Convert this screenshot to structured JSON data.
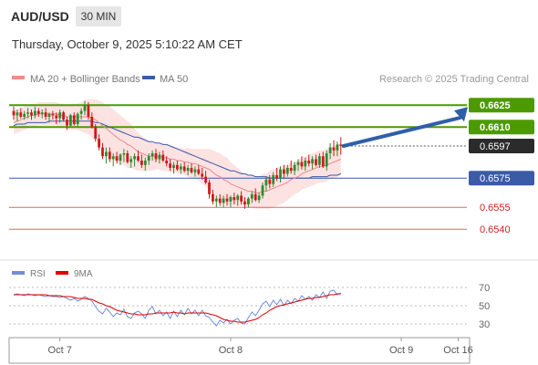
{
  "header": {
    "symbol": "AUD/USD",
    "timeframe": "30 MIN",
    "datetime": "Thursday, October 9, 2025 5:10:22 AM CET"
  },
  "legend": {
    "bb_label": "MA 20 + Bollinger Bands",
    "ma50_label": "MA 50",
    "credit": "Research © 2025 Trading Central",
    "bb_color": "#f28b82",
    "ma50_color": "#3b5ba9"
  },
  "rsi_legend": {
    "rsi_label": "RSI",
    "ma9_label": "9MA",
    "rsi_color": "#6f8fd8",
    "ma9_color": "#e00000"
  },
  "chart_data": [
    {
      "type": "candlestick",
      "ylim": [
        0.6522,
        0.6647
      ],
      "bullish_color": "#2e8b2e",
      "bearish_color": "#cc1b1b",
      "candles": [
        [
          0.6621,
          0.6624,
          0.6615,
          0.6618
        ],
        [
          0.6618,
          0.6622,
          0.6614,
          0.662
        ],
        [
          0.662,
          0.6623,
          0.6616,
          0.6617
        ],
        [
          0.6617,
          0.6621,
          0.6615,
          0.6619
        ],
        [
          0.6619,
          0.6623,
          0.6616,
          0.662
        ],
        [
          0.662,
          0.6622,
          0.6615,
          0.6618
        ],
        [
          0.6618,
          0.6624,
          0.6616,
          0.6621
        ],
        [
          0.6621,
          0.6623,
          0.6617,
          0.6619
        ],
        [
          0.6619,
          0.6622,
          0.6616,
          0.662
        ],
        [
          0.662,
          0.6623,
          0.6615,
          0.6617
        ],
        [
          0.6617,
          0.662,
          0.6613,
          0.6619
        ],
        [
          0.6619,
          0.6621,
          0.6615,
          0.6618
        ],
        [
          0.6618,
          0.662,
          0.6612,
          0.6616
        ],
        [
          0.6616,
          0.6622,
          0.6613,
          0.662
        ],
        [
          0.662,
          0.6621,
          0.6614,
          0.6615
        ],
        [
          0.6615,
          0.6617,
          0.6608,
          0.6611
        ],
        [
          0.6611,
          0.6619,
          0.661,
          0.6618
        ],
        [
          0.6618,
          0.662,
          0.6611,
          0.6612
        ],
        [
          0.6612,
          0.662,
          0.661,
          0.6619
        ],
        [
          0.6619,
          0.6623,
          0.6615,
          0.6621
        ],
        [
          0.6621,
          0.6628,
          0.6618,
          0.6625
        ],
        [
          0.6625,
          0.6627,
          0.6615,
          0.6617
        ],
        [
          0.6617,
          0.662,
          0.6609,
          0.661
        ],
        [
          0.661,
          0.6612,
          0.66,
          0.6602
        ],
        [
          0.6602,
          0.6605,
          0.6594,
          0.6596
        ],
        [
          0.6596,
          0.6599,
          0.6588,
          0.659
        ],
        [
          0.659,
          0.6596,
          0.6585,
          0.6593
        ],
        [
          0.6593,
          0.6596,
          0.6586,
          0.6588
        ],
        [
          0.6588,
          0.6592,
          0.6583,
          0.659
        ],
        [
          0.659,
          0.6593,
          0.6585,
          0.6587
        ],
        [
          0.6587,
          0.6592,
          0.6584,
          0.6591
        ],
        [
          0.6591,
          0.6595,
          0.6586,
          0.6592
        ],
        [
          0.6592,
          0.6594,
          0.6585,
          0.6586
        ],
        [
          0.6586,
          0.659,
          0.6582,
          0.6588
        ],
        [
          0.6588,
          0.6592,
          0.6583,
          0.659
        ],
        [
          0.659,
          0.6594,
          0.6586,
          0.6587
        ],
        [
          0.6587,
          0.6591,
          0.6582,
          0.6584
        ],
        [
          0.6584,
          0.6589,
          0.658,
          0.6587
        ],
        [
          0.6587,
          0.6592,
          0.6584,
          0.659
        ],
        [
          0.659,
          0.6594,
          0.6587,
          0.6592
        ],
        [
          0.6592,
          0.6595,
          0.6586,
          0.6588
        ],
        [
          0.6588,
          0.6593,
          0.6585,
          0.6591
        ],
        [
          0.6591,
          0.6594,
          0.6586,
          0.6587
        ],
        [
          0.6587,
          0.659,
          0.6583,
          0.6585
        ],
        [
          0.6585,
          0.6588,
          0.658,
          0.6582
        ],
        [
          0.6582,
          0.6586,
          0.6578,
          0.6584
        ],
        [
          0.6584,
          0.6587,
          0.658,
          0.6581
        ],
        [
          0.6581,
          0.6585,
          0.6578,
          0.6583
        ],
        [
          0.6583,
          0.6586,
          0.6579,
          0.658
        ],
        [
          0.658,
          0.6584,
          0.6577,
          0.6582
        ],
        [
          0.6582,
          0.6585,
          0.6578,
          0.6579
        ],
        [
          0.6579,
          0.6583,
          0.6576,
          0.6581
        ],
        [
          0.6581,
          0.6584,
          0.6577,
          0.6578
        ],
        [
          0.6578,
          0.6582,
          0.6574,
          0.6576
        ],
        [
          0.6576,
          0.658,
          0.6571,
          0.6572
        ],
        [
          0.6572,
          0.6574,
          0.6561,
          0.6564
        ],
        [
          0.6564,
          0.6567,
          0.6557,
          0.6559
        ],
        [
          0.6559,
          0.6563,
          0.6555,
          0.6561
        ],
        [
          0.6561,
          0.6564,
          0.6556,
          0.6558
        ],
        [
          0.6558,
          0.6563,
          0.6555,
          0.6561
        ],
        [
          0.6561,
          0.6564,
          0.6556,
          0.6559
        ],
        [
          0.6559,
          0.6563,
          0.6555,
          0.6562
        ],
        [
          0.6562,
          0.6565,
          0.6557,
          0.656
        ],
        [
          0.656,
          0.6564,
          0.6556,
          0.6563
        ],
        [
          0.6563,
          0.6566,
          0.6557,
          0.6559
        ],
        [
          0.6559,
          0.6562,
          0.6554,
          0.6557
        ],
        [
          0.6557,
          0.6562,
          0.6555,
          0.6561
        ],
        [
          0.6561,
          0.6566,
          0.6558,
          0.6564
        ],
        [
          0.6564,
          0.6568,
          0.6559,
          0.656
        ],
        [
          0.656,
          0.6565,
          0.6558,
          0.6563
        ],
        [
          0.6563,
          0.6572,
          0.6561,
          0.657
        ],
        [
          0.657,
          0.6576,
          0.6566,
          0.6574
        ],
        [
          0.6574,
          0.6577,
          0.6568,
          0.6571
        ],
        [
          0.6571,
          0.6579,
          0.6569,
          0.6577
        ],
        [
          0.6577,
          0.6582,
          0.6573,
          0.6575
        ],
        [
          0.6575,
          0.6583,
          0.6572,
          0.6581
        ],
        [
          0.6581,
          0.6584,
          0.6575,
          0.6578
        ],
        [
          0.6578,
          0.6584,
          0.6576,
          0.6582
        ],
        [
          0.6582,
          0.6587,
          0.6578,
          0.658
        ],
        [
          0.658,
          0.6586,
          0.6577,
          0.6584
        ],
        [
          0.6584,
          0.6588,
          0.658,
          0.6586
        ],
        [
          0.6586,
          0.659,
          0.6581,
          0.6583
        ],
        [
          0.6583,
          0.6589,
          0.658,
          0.6587
        ],
        [
          0.6587,
          0.6591,
          0.6583,
          0.6585
        ],
        [
          0.6585,
          0.659,
          0.6581,
          0.6588
        ],
        [
          0.6588,
          0.6591,
          0.6583,
          0.6584
        ],
        [
          0.6584,
          0.6592,
          0.6582,
          0.659
        ],
        [
          0.659,
          0.6593,
          0.6582,
          0.6583
        ],
        [
          0.6583,
          0.6594,
          0.658,
          0.6592
        ],
        [
          0.6592,
          0.6599,
          0.6588,
          0.6596
        ],
        [
          0.6596,
          0.6601,
          0.659,
          0.6594
        ],
        [
          0.6594,
          0.66,
          0.659,
          0.6598
        ],
        [
          0.6598,
          0.6603,
          0.6591,
          0.6597
        ]
      ],
      "ma20": [
        0.6613,
        0.6614,
        0.6615,
        0.6616,
        0.6617,
        0.6618,
        0.6618,
        0.6619,
        0.6619,
        0.6619,
        0.6619,
        0.6619,
        0.6619,
        0.6618,
        0.6618,
        0.6617,
        0.6617,
        0.6617,
        0.6617,
        0.6617,
        0.6617,
        0.6617,
        0.6616,
        0.6615,
        0.6613,
        0.6611,
        0.6609,
        0.6607,
        0.6605,
        0.6603,
        0.6601,
        0.66,
        0.6598,
        0.6597,
        0.6595,
        0.6593,
        0.6592,
        0.6591,
        0.659,
        0.659,
        0.659,
        0.659,
        0.6589,
        0.6589,
        0.6588,
        0.6588,
        0.6587,
        0.6587,
        0.6586,
        0.6586,
        0.6585,
        0.6585,
        0.6584,
        0.6583,
        0.6582,
        0.6581,
        0.6579,
        0.6577,
        0.6576,
        0.6574,
        0.6573,
        0.6571,
        0.657,
        0.6569,
        0.6568,
        0.6567,
        0.6566,
        0.6566,
        0.6565,
        0.6565,
        0.6566,
        0.6566,
        0.6567,
        0.6568,
        0.6569,
        0.657,
        0.6571,
        0.6572,
        0.6574,
        0.6575,
        0.6576,
        0.6578,
        0.6579,
        0.658,
        0.6581,
        0.6582,
        0.6583,
        0.6583,
        0.6584,
        0.6585,
        0.6586,
        0.6587,
        0.6588
      ],
      "bb_width": [
        0.0008,
        0.0008,
        0.0008,
        0.0008,
        0.0008,
        0.0008,
        0.0008,
        0.0008,
        0.0008,
        0.0008,
        0.0008,
        0.0008,
        0.0008,
        0.0008,
        0.0008,
        0.0008,
        0.0009,
        0.0009,
        0.0009,
        0.001,
        0.0011,
        0.0012,
        0.0013,
        0.0014,
        0.0015,
        0.0016,
        0.0016,
        0.0017,
        0.0017,
        0.0017,
        0.0017,
        0.0016,
        0.0016,
        0.0015,
        0.0014,
        0.0013,
        0.0012,
        0.0011,
        0.001,
        0.001,
        0.0009,
        0.0009,
        0.0009,
        0.0009,
        0.0009,
        0.0009,
        0.0009,
        0.0009,
        0.0009,
        0.001,
        0.001,
        0.001,
        0.0011,
        0.0012,
        0.0013,
        0.0014,
        0.0015,
        0.0016,
        0.0016,
        0.0016,
        0.0016,
        0.0015,
        0.0014,
        0.0013,
        0.0012,
        0.0011,
        0.0011,
        0.0011,
        0.0011,
        0.0011,
        0.0012,
        0.0012,
        0.0013,
        0.0013,
        0.0013,
        0.0013,
        0.0013,
        0.0012,
        0.0012,
        0.0011,
        0.0011,
        0.0011,
        0.0011,
        0.0011,
        0.0011,
        0.0011,
        0.0011,
        0.0011,
        0.0011,
        0.0011,
        0.0011,
        0.0011,
        0.0011
      ],
      "ma50": [
        0.6611,
        0.6612,
        0.6612,
        0.6612,
        0.6613,
        0.6613,
        0.6613,
        0.6613,
        0.6613,
        0.6613,
        0.6614,
        0.6614,
        0.6614,
        0.6614,
        0.6614,
        0.6614,
        0.6614,
        0.6614,
        0.6614,
        0.6614,
        0.6614,
        0.6614,
        0.6614,
        0.6613,
        0.6613,
        0.6612,
        0.6611,
        0.661,
        0.6609,
        0.6608,
        0.6607,
        0.6606,
        0.6605,
        0.6604,
        0.6603,
        0.6603,
        0.6602,
        0.6601,
        0.66,
        0.66,
        0.6599,
        0.6599,
        0.6598,
        0.6598,
        0.6597,
        0.6596,
        0.6595,
        0.6594,
        0.6593,
        0.6592,
        0.6591,
        0.659,
        0.6589,
        0.6588,
        0.6587,
        0.6586,
        0.6585,
        0.6584,
        0.6583,
        0.6582,
        0.6581,
        0.658,
        0.658,
        0.6579,
        0.6578,
        0.6578,
        0.6577,
        0.6577,
        0.6576,
        0.6576,
        0.6576,
        0.6576,
        0.6575,
        0.6575,
        0.6575,
        0.6575,
        0.6575,
        0.6575,
        0.6575,
        0.6575,
        0.6575,
        0.6575,
        0.6575,
        0.6575,
        0.6576,
        0.6576,
        0.6576,
        0.6576,
        0.6576,
        0.6577,
        0.6577,
        0.6577,
        0.6578
      ],
      "levels": [
        {
          "value": 0.6625,
          "label": "0.6625",
          "color": "#4c9a00",
          "style": "resistance"
        },
        {
          "value": 0.661,
          "label": "0.6610",
          "color": "#4c9a00",
          "style": "resistance"
        },
        {
          "value": 0.6597,
          "label": "0.6597",
          "color": "#2b2b2b",
          "style": "last"
        },
        {
          "value": 0.6575,
          "label": "0.6575",
          "color": "#3b5ba9",
          "style": "pivot"
        },
        {
          "value": 0.6555,
          "label": "0.6555",
          "color": "#e06666",
          "style": "support"
        },
        {
          "value": 0.654,
          "label": "0.6540",
          "color": "#e06666",
          "style": "support"
        }
      ],
      "arrow": {
        "from": 0.6597,
        "to": 0.662,
        "color": "#2f5fa8"
      }
    },
    {
      "type": "line",
      "ylim": [
        15,
        85
      ],
      "yticks": [
        70,
        50,
        30
      ],
      "rsi": [
        62,
        63,
        62,
        61,
        63,
        62,
        61,
        62,
        61,
        60,
        61,
        60,
        60,
        59,
        60,
        58,
        56,
        58,
        55,
        57,
        60,
        58,
        55,
        49,
        44,
        41,
        47,
        43,
        38,
        42,
        40,
        46,
        38,
        36,
        42,
        44,
        41,
        36,
        45,
        49,
        41,
        45,
        39,
        43,
        36,
        44,
        38,
        45,
        40,
        47,
        41,
        45,
        39,
        45,
        39,
        37,
        32,
        28,
        34,
        31,
        35,
        30,
        34,
        36,
        31,
        30,
        37,
        43,
        39,
        45,
        52,
        55,
        49,
        56,
        51,
        57,
        50,
        56,
        52,
        58,
        55,
        61,
        57,
        60,
        56,
        62,
        59,
        65,
        58,
        66,
        67,
        62,
        64
      ],
      "ma9": [
        62,
        62,
        62,
        62,
        62,
        62,
        62,
        62,
        62,
        62,
        61,
        61,
        61,
        61,
        60,
        60,
        60,
        59,
        58,
        58,
        58,
        57,
        57,
        55,
        53,
        52,
        50,
        49,
        47,
        45,
        44,
        43,
        42,
        41,
        41,
        40,
        40,
        40,
        41,
        41,
        42,
        42,
        42,
        42,
        42,
        43,
        42,
        42,
        41,
        42,
        42,
        42,
        42,
        42,
        42,
        41,
        40,
        39,
        37,
        35,
        34,
        33,
        33,
        32,
        32,
        32,
        33,
        34,
        35,
        37,
        40,
        42,
        45,
        47,
        49,
        50,
        51,
        52,
        53,
        54,
        55,
        56,
        57,
        58,
        58,
        59,
        59,
        60,
        61,
        62,
        62,
        63,
        63
      ],
      "x_labels": [
        {
          "i": 13,
          "label": "Oct 7"
        },
        {
          "i": 61,
          "label": "Oct 8"
        },
        {
          "i": 109,
          "label": "Oct 9"
        },
        {
          "i": 125,
          "label": "Oct 16"
        }
      ]
    }
  ]
}
